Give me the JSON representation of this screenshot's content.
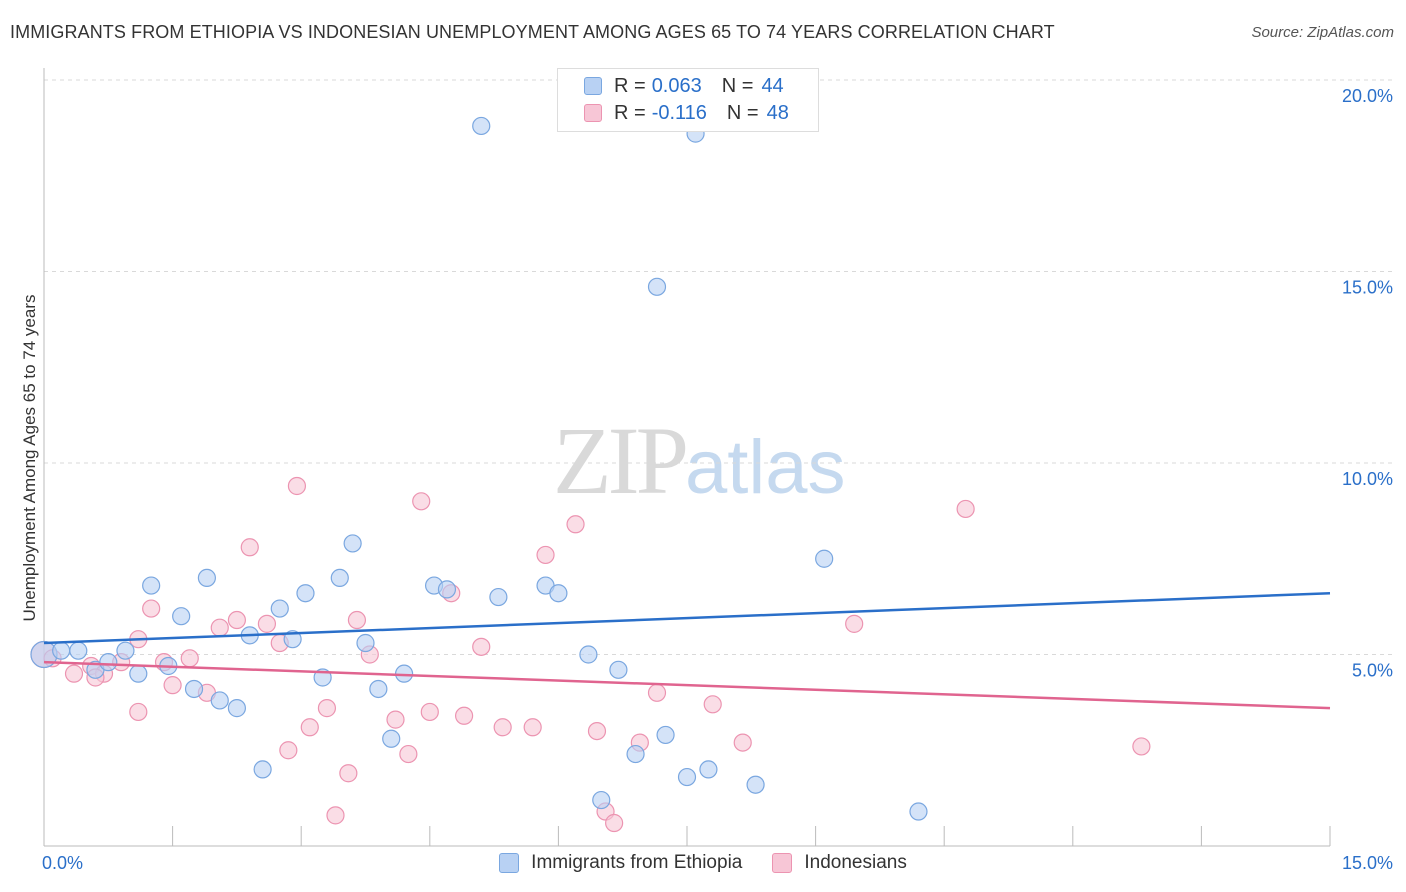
{
  "title": "IMMIGRANTS FROM ETHIOPIA VS INDONESIAN UNEMPLOYMENT AMONG AGES 65 TO 74 YEARS CORRELATION CHART",
  "source": "Source: ZipAtlas.com",
  "watermark": {
    "zip": "ZIP",
    "atlas": "atlas"
  },
  "legend": {
    "r_label": "R =",
    "n_label": "N =",
    "series1": {
      "r": "0.063",
      "n": "44"
    },
    "series2": {
      "r": "-0.116",
      "n": "48"
    }
  },
  "colors": {
    "blue_fill": "#b8d1f3",
    "blue_stroke": "#7aa7e0",
    "blue_line": "#2a6fc9",
    "pink_fill": "#f7c6d6",
    "pink_stroke": "#ec94b1",
    "pink_line": "#e0648f",
    "grid": "#d9d9d9",
    "tick_label": "#2a6fc9"
  },
  "chart_data": {
    "type": "scatter",
    "title": "IMMIGRANTS FROM ETHIOPIA VS INDONESIAN UNEMPLOYMENT AMONG AGES 65 TO 74 YEARS CORRELATION CHART",
    "xlabel": "",
    "ylabel": "Unemployment Among Ages 65 to 74 years",
    "xlim": [
      0,
      15
    ],
    "ylim": [
      0,
      20
    ],
    "x_tick_labels": [
      "0.0%",
      "15.0%"
    ],
    "y_ticks": [
      5,
      10,
      15,
      20
    ],
    "y_tick_labels": [
      "5.0%",
      "10.0%",
      "15.0%",
      "20.0%"
    ],
    "series": [
      {
        "name": "Immigrants from Ethiopia",
        "color": "blue",
        "trend": [
          [
            0,
            5.3
          ],
          [
            15,
            6.6
          ]
        ],
        "points": [
          [
            0.0,
            5.0
          ],
          [
            0.2,
            5.1
          ],
          [
            0.4,
            5.1
          ],
          [
            0.6,
            4.6
          ],
          [
            0.75,
            4.8
          ],
          [
            1.1,
            4.5
          ],
          [
            0.95,
            5.1
          ],
          [
            1.25,
            6.8
          ],
          [
            1.45,
            4.7
          ],
          [
            1.6,
            6.0
          ],
          [
            1.75,
            4.1
          ],
          [
            1.9,
            7.0
          ],
          [
            2.05,
            3.8
          ],
          [
            2.25,
            3.6
          ],
          [
            2.4,
            5.5
          ],
          [
            2.55,
            2.0
          ],
          [
            2.75,
            6.2
          ],
          [
            2.9,
            5.4
          ],
          [
            3.05,
            6.6
          ],
          [
            3.25,
            4.4
          ],
          [
            3.45,
            7.0
          ],
          [
            3.6,
            7.9
          ],
          [
            3.75,
            5.3
          ],
          [
            3.9,
            4.1
          ],
          [
            4.05,
            2.8
          ],
          [
            4.2,
            4.5
          ],
          [
            4.55,
            6.8
          ],
          [
            4.7,
            6.7
          ],
          [
            5.3,
            6.5
          ],
          [
            5.85,
            6.8
          ],
          [
            6.0,
            6.6
          ],
          [
            6.35,
            5.0
          ],
          [
            6.5,
            1.2
          ],
          [
            6.7,
            4.6
          ],
          [
            6.9,
            2.4
          ],
          [
            7.25,
            2.9
          ],
          [
            7.5,
            1.8
          ],
          [
            7.75,
            2.0
          ],
          [
            8.3,
            1.6
          ],
          [
            9.1,
            7.5
          ],
          [
            10.2,
            0.9
          ],
          [
            5.1,
            18.8
          ],
          [
            7.6,
            18.6
          ],
          [
            7.15,
            14.6
          ]
        ]
      },
      {
        "name": "Indonesians",
        "color": "pink",
        "trend": [
          [
            0,
            4.8
          ],
          [
            15,
            3.6
          ]
        ],
        "points": [
          [
            0.0,
            5.0
          ],
          [
            0.1,
            4.9
          ],
          [
            0.35,
            4.5
          ],
          [
            0.55,
            4.7
          ],
          [
            0.7,
            4.5
          ],
          [
            0.9,
            4.8
          ],
          [
            1.1,
            5.4
          ],
          [
            1.25,
            6.2
          ],
          [
            1.1,
            3.5
          ],
          [
            1.4,
            4.8
          ],
          [
            1.5,
            4.2
          ],
          [
            1.7,
            4.9
          ],
          [
            1.9,
            4.0
          ],
          [
            2.05,
            5.7
          ],
          [
            2.25,
            5.9
          ],
          [
            2.4,
            7.8
          ],
          [
            2.6,
            5.8
          ],
          [
            2.75,
            5.3
          ],
          [
            2.85,
            2.5
          ],
          [
            2.95,
            9.4
          ],
          [
            3.1,
            3.1
          ],
          [
            3.3,
            3.6
          ],
          [
            3.4,
            0.8
          ],
          [
            3.55,
            1.9
          ],
          [
            3.65,
            5.9
          ],
          [
            3.8,
            5.0
          ],
          [
            4.1,
            3.3
          ],
          [
            4.25,
            2.4
          ],
          [
            4.4,
            9.0
          ],
          [
            4.5,
            3.5
          ],
          [
            4.75,
            6.6
          ],
          [
            4.9,
            3.4
          ],
          [
            5.1,
            5.2
          ],
          [
            5.35,
            3.1
          ],
          [
            5.7,
            3.1
          ],
          [
            5.85,
            7.6
          ],
          [
            6.2,
            8.4
          ],
          [
            6.45,
            3.0
          ],
          [
            6.55,
            0.9
          ],
          [
            6.65,
            0.6
          ],
          [
            6.95,
            2.7
          ],
          [
            7.15,
            4.0
          ],
          [
            7.8,
            3.7
          ],
          [
            8.15,
            2.7
          ],
          [
            9.45,
            5.8
          ],
          [
            10.75,
            8.8
          ],
          [
            12.8,
            2.6
          ],
          [
            0.6,
            4.4
          ]
        ]
      }
    ]
  }
}
